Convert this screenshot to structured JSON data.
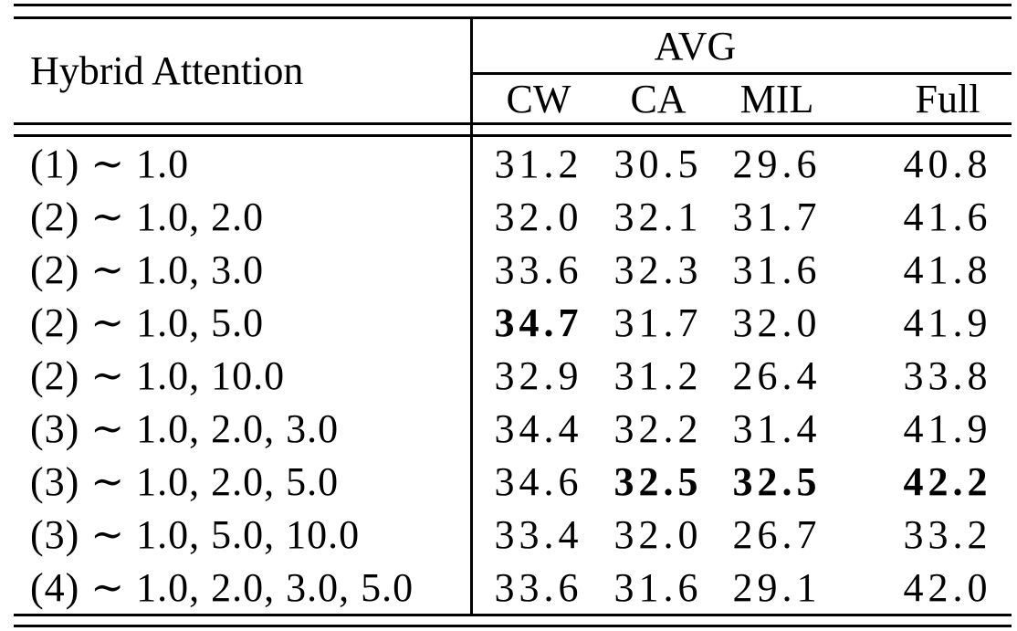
{
  "table": {
    "row_header_label": "Hybrid Attention",
    "group_header": "AVG",
    "columns": [
      "CW",
      "CA",
      "MIL",
      "Full"
    ],
    "rows": [
      {
        "label": "(1) ∼ 1.0",
        "values": [
          "31.2",
          "30.5",
          "29.6",
          "40.8"
        ],
        "bold": [
          false,
          false,
          false,
          false
        ]
      },
      {
        "label": "(2) ∼ 1.0, 2.0",
        "values": [
          "32.0",
          "32.1",
          "31.7",
          "41.6"
        ],
        "bold": [
          false,
          false,
          false,
          false
        ]
      },
      {
        "label": "(2) ∼ 1.0, 3.0",
        "values": [
          "33.6",
          "32.3",
          "31.6",
          "41.8"
        ],
        "bold": [
          false,
          false,
          false,
          false
        ]
      },
      {
        "label": "(2) ∼ 1.0, 5.0",
        "values": [
          "34.7",
          "31.7",
          "32.0",
          "41.9"
        ],
        "bold": [
          true,
          false,
          false,
          false
        ]
      },
      {
        "label": "(2) ∼ 1.0, 10.0",
        "values": [
          "32.9",
          "31.2",
          "26.4",
          "33.8"
        ],
        "bold": [
          false,
          false,
          false,
          false
        ]
      },
      {
        "label": "(3) ∼ 1.0, 2.0, 3.0",
        "values": [
          "34.4",
          "32.2",
          "31.4",
          "41.9"
        ],
        "bold": [
          false,
          false,
          false,
          false
        ]
      },
      {
        "label": "(3) ∼ 1.0, 2.0, 5.0",
        "values": [
          "34.6",
          "32.5",
          "32.5",
          "42.2"
        ],
        "bold": [
          false,
          true,
          true,
          true
        ]
      },
      {
        "label": "(3) ∼ 1.0, 5.0, 10.0",
        "values": [
          "33.4",
          "32.0",
          "26.7",
          "33.2"
        ],
        "bold": [
          false,
          false,
          false,
          false
        ]
      },
      {
        "label": "(4) ∼ 1.0, 2.0, 3.0, 5.0",
        "values": [
          "33.6",
          "31.6",
          "29.1",
          "42.0"
        ],
        "bold": [
          false,
          false,
          false,
          false
        ]
      }
    ],
    "line_color": "#000000",
    "background_color": "#ffffff"
  }
}
